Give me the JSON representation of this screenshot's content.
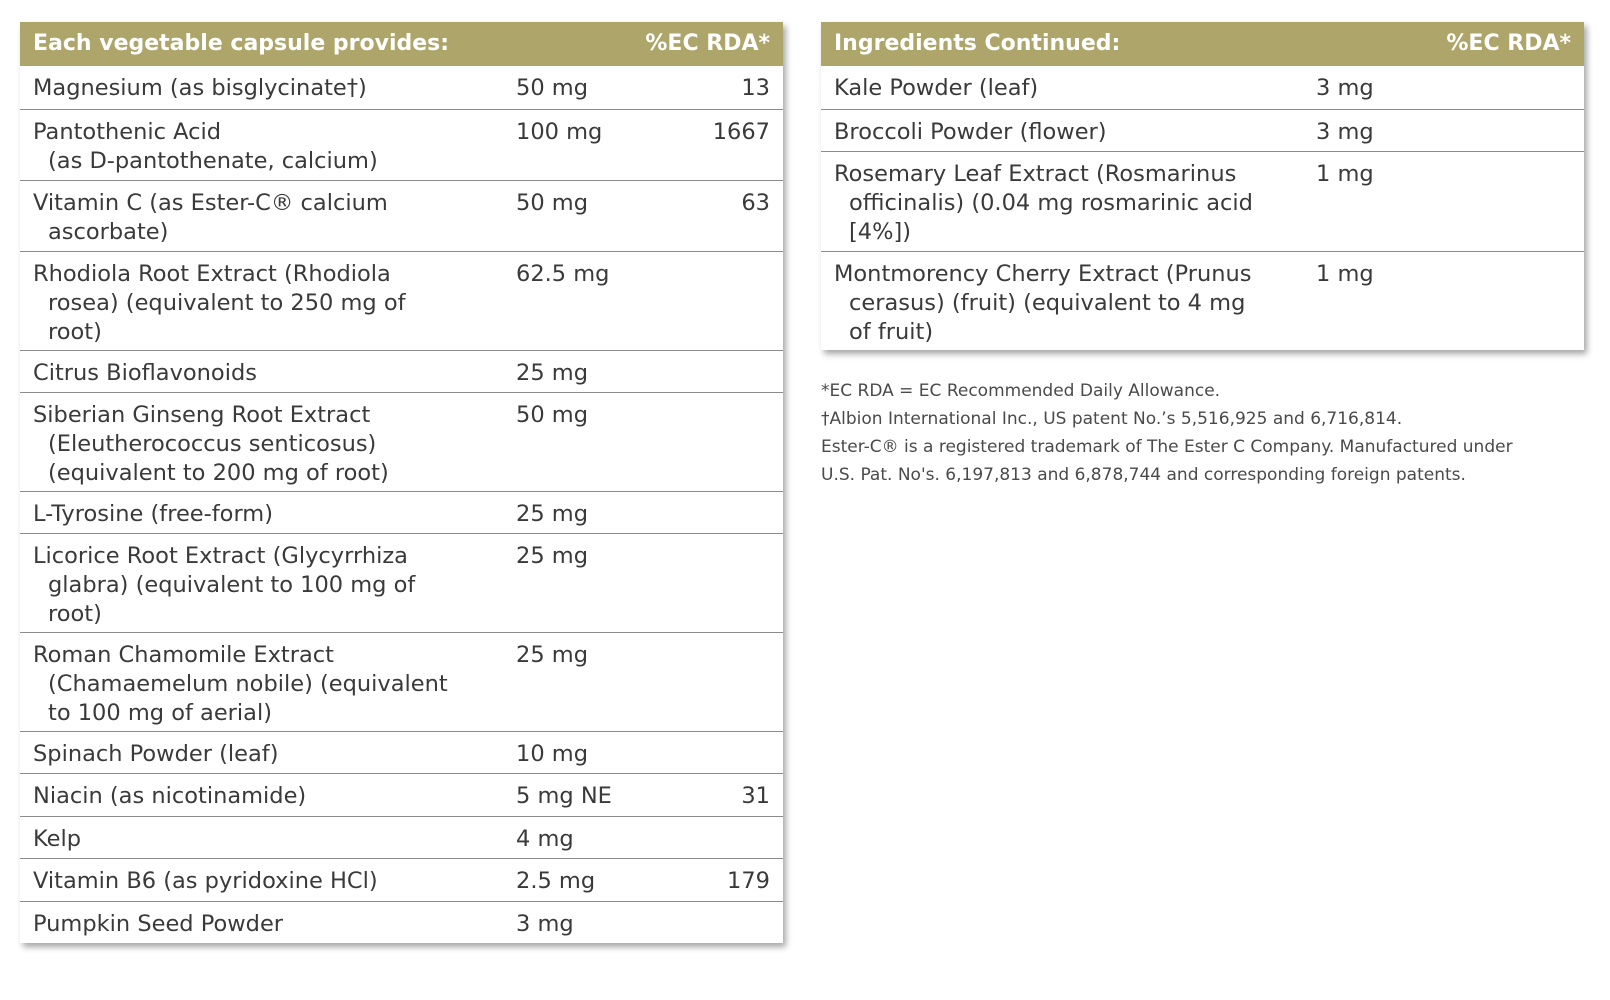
{
  "colors": {
    "header_bg": "#ada569",
    "header_text": "#ffffff",
    "body_text": "#3a3a3a",
    "row_divider": "#8c8c8c"
  },
  "left_table": {
    "header_label": "Each vegetable capsule provides:",
    "header_rda": "%EC RDA*",
    "rows": [
      {
        "name_lines": [
          "Magnesium (as bisglycinate†)"
        ],
        "amount": "50 mg",
        "rda": "13"
      },
      {
        "name_lines": [
          "Pantothenic Acid",
          "(as D-pantothenate, calcium)"
        ],
        "amount": "100 mg",
        "rda": "1667"
      },
      {
        "name_lines": [
          "Vitamin C (as Ester-C® calcium",
          "ascorbate)"
        ],
        "amount": "50 mg",
        "rda": "63"
      },
      {
        "name_lines": [
          "Rhodiola Root Extract (Rhodiola",
          "rosea) (equivalent to 250 mg of",
          "root)"
        ],
        "amount": "62.5 mg",
        "rda": ""
      },
      {
        "name_lines": [
          "Citrus Bioflavonoids"
        ],
        "amount": "25 mg",
        "rda": ""
      },
      {
        "name_lines": [
          "Siberian Ginseng Root Extract",
          "(Eleutherococcus senticosus)",
          "(equivalent to 200 mg of root)"
        ],
        "amount": "50 mg",
        "rda": ""
      },
      {
        "name_lines": [
          "L-Tyrosine (free-form)"
        ],
        "amount": "25 mg",
        "rda": ""
      },
      {
        "name_lines": [
          "Licorice Root Extract (Glycyrrhiza",
          "glabra) (equivalent to 100 mg of",
          "root)"
        ],
        "amount": "25 mg",
        "rda": ""
      },
      {
        "name_lines": [
          "Roman Chamomile Extract",
          "(Chamaemelum nobile) (equivalent",
          "to 100 mg of aerial)"
        ],
        "amount": "25 mg",
        "rda": ""
      },
      {
        "name_lines": [
          "Spinach Powder (leaf)"
        ],
        "amount": "10 mg",
        "rda": ""
      },
      {
        "name_lines": [
          "Niacin (as nicotinamide)"
        ],
        "amount": "5 mg NE",
        "rda": "31"
      },
      {
        "name_lines": [
          "Kelp"
        ],
        "amount": "4 mg",
        "rda": ""
      },
      {
        "name_lines": [
          "Vitamin B6 (as pyridoxine HCl)"
        ],
        "amount": "2.5 mg",
        "rda": "179"
      },
      {
        "name_lines": [
          "Pumpkin Seed Powder"
        ],
        "amount": "3 mg",
        "rda": ""
      }
    ]
  },
  "right_table": {
    "header_label": "Ingredients Continued:",
    "header_rda": "%EC RDA*",
    "rows": [
      {
        "name_lines": [
          "Kale Powder (leaf)"
        ],
        "amount": "3 mg",
        "rda": ""
      },
      {
        "name_lines": [
          "Broccoli Powder (flower)"
        ],
        "amount": "3 mg",
        "rda": ""
      },
      {
        "name_lines": [
          "Rosemary Leaf Extract (Rosmarinus",
          "officinalis) (0.04 mg rosmarinic acid",
          "[4%])"
        ],
        "amount": "1 mg",
        "rda": ""
      },
      {
        "name_lines": [
          "Montmorency Cherry Extract (Prunus",
          "cerasus) (fruit) (equivalent to 4 mg",
          "of fruit)"
        ],
        "amount": "1 mg",
        "rda": ""
      }
    ]
  },
  "footnotes": [
    "*EC RDA = EC Recommended Daily Allowance.",
    "†Albion International Inc., US patent No.’s 5,516,925 and 6,716,814.",
    "Ester-C® is a registered trademark of The Ester C Company. Manufactured under",
    "U.S. Pat. No's. 6,197,813 and 6,878,744 and corresponding foreign patents."
  ]
}
